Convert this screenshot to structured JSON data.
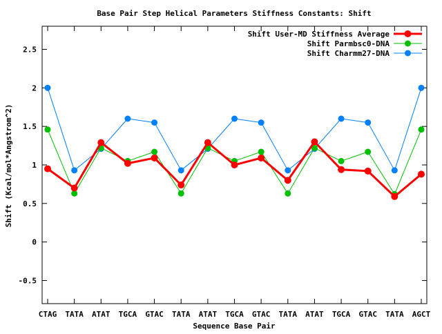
{
  "chart_data": {
    "type": "line",
    "title": "Base Pair Step Helical Parameters Stiffness Constants: Shift",
    "xlabel": "Sequence Base Pair",
    "ylabel": "Shift (Kcal/mol*Angstrom^2)",
    "ylim": [
      -0.8,
      2.8
    ],
    "yticks": [
      -0.5,
      0,
      0.5,
      1,
      1.5,
      2,
      2.5
    ],
    "ytick_labels": [
      "-0.5",
      "0",
      "0.5",
      "1",
      "1.5",
      "2",
      "2.5"
    ],
    "categories": [
      "CTAG",
      "TATA",
      "ATAT",
      "TGCA",
      "GTAC",
      "TATA",
      "ATAT",
      "TGCA",
      "GTAC",
      "TATA",
      "ATAT",
      "TGCA",
      "GTAC",
      "TATA",
      "AGCT"
    ],
    "grid": false,
    "legend_position": "top-right",
    "series": [
      {
        "name": "Shift User-MD Stiffness Average",
        "color": "#ff0000",
        "values": [
          0.95,
          0.7,
          1.29,
          1.02,
          1.09,
          0.74,
          1.29,
          1.0,
          1.09,
          0.8,
          1.3,
          0.94,
          0.92,
          0.59,
          0.88
        ]
      },
      {
        "name": "Shift Parmbsc0-DNA",
        "color": "#00c000",
        "values": [
          1.46,
          0.63,
          1.22,
          1.05,
          1.17,
          0.63,
          1.22,
          1.05,
          1.17,
          0.63,
          1.22,
          1.05,
          1.17,
          0.62,
          1.46
        ]
      },
      {
        "name": "Shift Charmm27-DNA",
        "color": "#0080ff",
        "values": [
          2.0,
          0.93,
          1.21,
          1.6,
          1.55,
          0.93,
          1.21,
          1.6,
          1.55,
          0.93,
          1.21,
          1.6,
          1.55,
          0.93,
          2.0
        ]
      }
    ]
  }
}
